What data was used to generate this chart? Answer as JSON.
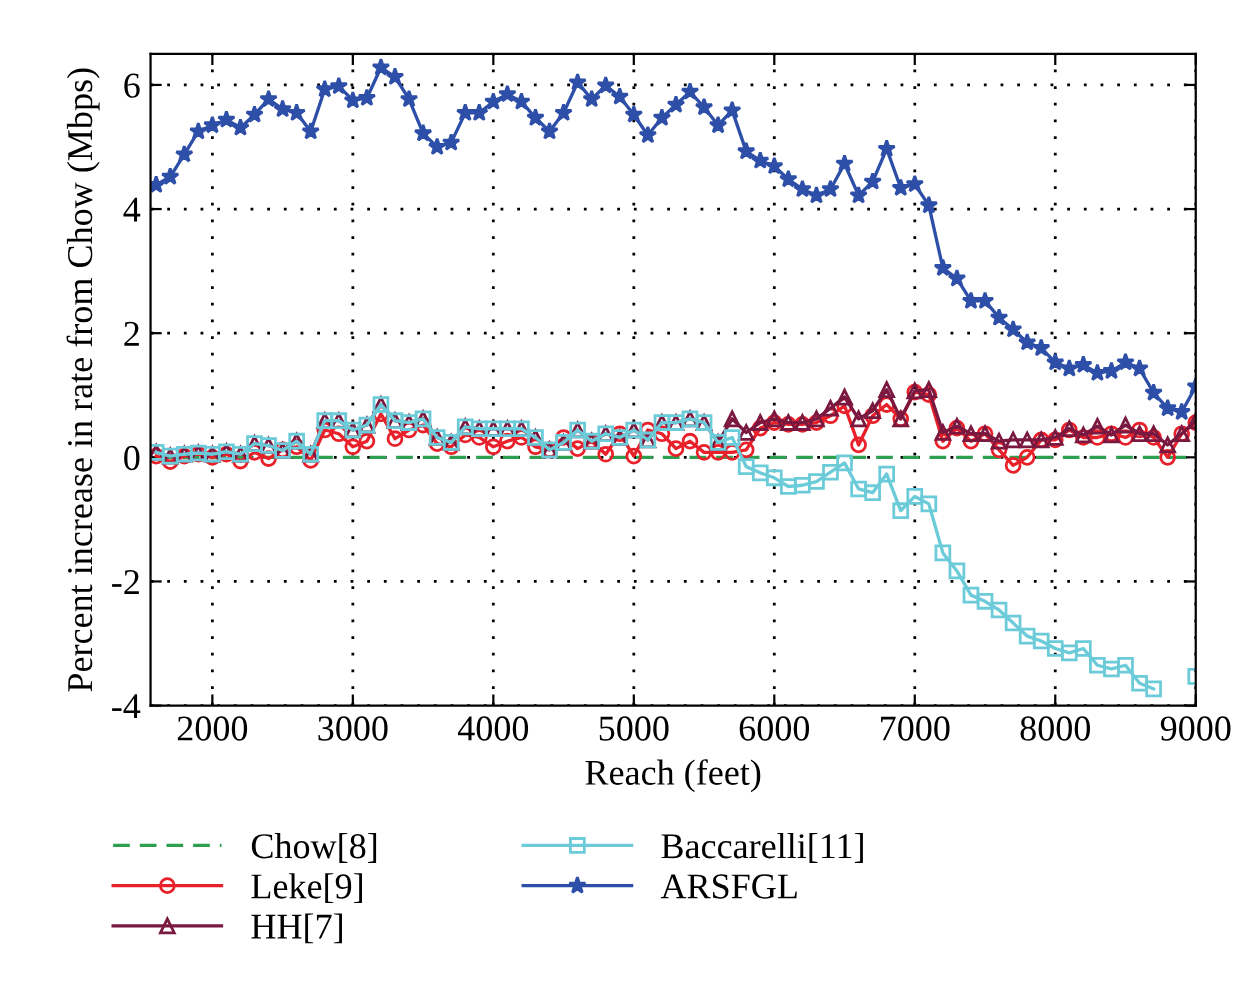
{
  "chart_data": {
    "type": "line",
    "xlabel": "Reach (feet)",
    "ylabel": "Percent increase in rate from Chow (Mbps)",
    "x": [
      1600,
      1700,
      1800,
      1900,
      2000,
      2100,
      2200,
      2300,
      2400,
      2500,
      2600,
      2700,
      2800,
      2900,
      3000,
      3100,
      3200,
      3300,
      3400,
      3500,
      3600,
      3700,
      3800,
      3900,
      4000,
      4100,
      4200,
      4300,
      4400,
      4500,
      4600,
      4700,
      4800,
      4900,
      5000,
      5100,
      5200,
      5300,
      5400,
      5500,
      5600,
      5700,
      5800,
      5900,
      6000,
      6100,
      6200,
      6300,
      6400,
      6500,
      6600,
      6700,
      6800,
      6900,
      7000,
      7100,
      7200,
      7300,
      7400,
      7500,
      7600,
      7700,
      7800,
      7900,
      8000,
      8100,
      8200,
      8300,
      8400,
      8500,
      8600,
      8700,
      8800,
      8900,
      9000
    ],
    "xlim": [
      1560,
      9000
    ],
    "xticks": [
      2000,
      3000,
      4000,
      5000,
      6000,
      7000,
      8000,
      9000
    ],
    "ylim": [
      -4,
      6.5
    ],
    "yticks": [
      -4,
      -2,
      0,
      2,
      4,
      6
    ],
    "grid": true,
    "legend": "bottom",
    "series": [
      {
        "name": "Chow[8]",
        "color": "#2e9e4f",
        "marker": "none",
        "line_style": "dashed",
        "values": [
          0,
          0,
          0,
          0,
          0,
          0,
          0,
          0,
          0,
          0,
          0,
          0,
          0,
          0,
          0,
          0,
          0,
          0,
          0,
          0,
          0,
          0,
          0,
          0,
          0,
          0,
          0,
          0,
          0,
          0,
          0,
          0,
          0,
          0,
          0,
          0,
          0,
          0,
          0,
          0,
          0,
          0,
          0,
          0,
          0,
          0,
          0,
          0,
          0,
          0,
          0,
          0,
          0,
          0,
          0,
          0,
          0,
          0,
          0,
          0,
          0,
          0,
          0,
          0,
          0,
          0,
          0,
          0,
          0,
          0,
          0,
          0,
          0,
          0,
          0
        ]
      },
      {
        "name": "Leke[9]",
        "color": "#e8202a",
        "marker": "circle",
        "line_style": "solid",
        "values": [
          0.02,
          -0.07,
          0.02,
          0.05,
          0.0,
          0.05,
          -0.06,
          0.08,
          -0.02,
          0.12,
          0.17,
          -0.05,
          0.44,
          0.38,
          0.17,
          0.26,
          0.7,
          0.3,
          0.44,
          0.52,
          0.22,
          0.17,
          0.36,
          0.32,
          0.17,
          0.26,
          0.32,
          0.17,
          0.12,
          0.32,
          0.14,
          0.26,
          0.05,
          0.38,
          0.02,
          0.44,
          0.38,
          0.14,
          0.26,
          0.08,
          0.08,
          0.08,
          0.12,
          0.47,
          0.56,
          0.53,
          0.53,
          0.56,
          0.67,
          0.83,
          0.2,
          0.67,
          0.85,
          0.62,
          1.05,
          1.01,
          0.26,
          0.47,
          0.26,
          0.38,
          0.12,
          -0.13,
          0.0,
          0.28,
          0.28,
          0.44,
          0.32,
          0.32,
          0.38,
          0.32,
          0.44,
          0.32,
          0.0,
          0.38,
          0.56
        ]
      },
      {
        "name": "HH[7]",
        "color": "#7a1840",
        "marker": "triangle",
        "line_style": "solid",
        "values": [
          0.08,
          0.02,
          0.05,
          0.07,
          0.05,
          0.09,
          0.05,
          0.22,
          0.19,
          0.11,
          0.26,
          0.05,
          0.59,
          0.59,
          0.44,
          0.52,
          0.85,
          0.59,
          0.56,
          0.62,
          0.32,
          0.24,
          0.49,
          0.46,
          0.46,
          0.46,
          0.46,
          0.32,
          0.12,
          0.24,
          0.44,
          0.26,
          0.38,
          0.32,
          0.44,
          0.28,
          0.56,
          0.56,
          0.62,
          0.56,
          0.24,
          0.62,
          0.4,
          0.56,
          0.62,
          0.56,
          0.56,
          0.62,
          0.79,
          0.97,
          0.62,
          0.75,
          1.09,
          0.62,
          1.07,
          1.09,
          0.4,
          0.5,
          0.38,
          0.38,
          0.26,
          0.28,
          0.28,
          0.28,
          0.32,
          0.46,
          0.36,
          0.5,
          0.36,
          0.52,
          0.38,
          0.38,
          0.2,
          0.38,
          0.59
        ]
      },
      {
        "name": "Baccarelli[11]",
        "color": "#6ccbd8",
        "marker": "square",
        "line_style": "solid",
        "values": [
          0.08,
          0.02,
          0.05,
          0.07,
          0.05,
          0.09,
          0.05,
          0.22,
          0.19,
          0.11,
          0.26,
          0.05,
          0.59,
          0.59,
          0.44,
          0.52,
          0.85,
          0.59,
          0.56,
          0.62,
          0.32,
          0.24,
          0.49,
          0.46,
          0.46,
          0.46,
          0.46,
          0.32,
          0.12,
          0.24,
          0.44,
          0.26,
          0.38,
          0.32,
          0.44,
          0.28,
          0.56,
          0.56,
          0.62,
          0.56,
          0.24,
          0.32,
          -0.15,
          -0.25,
          -0.33,
          -0.47,
          -0.45,
          -0.39,
          -0.24,
          -0.09,
          -0.51,
          -0.57,
          -0.27,
          -0.86,
          -0.63,
          -0.75,
          -1.54,
          -1.83,
          -2.22,
          -2.32,
          -2.46,
          -2.67,
          -2.88,
          -2.96,
          -3.08,
          -3.15,
          -3.08,
          -3.35,
          -3.41,
          -3.35,
          -3.64,
          -3.73,
          null,
          null,
          -3.53
        ]
      },
      {
        "name": "ARSFGL",
        "color": "#2e4fa8",
        "marker": "star",
        "line_style": "solid",
        "values": [
          4.39,
          4.52,
          4.88,
          5.25,
          5.35,
          5.44,
          5.31,
          5.52,
          5.77,
          5.61,
          5.55,
          5.25,
          5.93,
          5.98,
          5.75,
          5.79,
          6.28,
          6.13,
          5.77,
          5.22,
          5.0,
          5.07,
          5.55,
          5.55,
          5.73,
          5.85,
          5.73,
          5.47,
          5.25,
          5.55,
          6.04,
          5.77,
          5.99,
          5.81,
          5.52,
          5.19,
          5.47,
          5.68,
          5.89,
          5.64,
          5.35,
          5.59,
          4.93,
          4.78,
          4.69,
          4.48,
          4.32,
          4.22,
          4.32,
          4.73,
          4.22,
          4.44,
          4.97,
          4.34,
          4.4,
          4.06,
          3.05,
          2.88,
          2.52,
          2.52,
          2.25,
          2.06,
          1.85,
          1.76,
          1.53,
          1.43,
          1.49,
          1.36,
          1.39,
          1.53,
          1.43,
          1.04,
          0.79,
          0.73,
          1.14
        ]
      }
    ]
  }
}
